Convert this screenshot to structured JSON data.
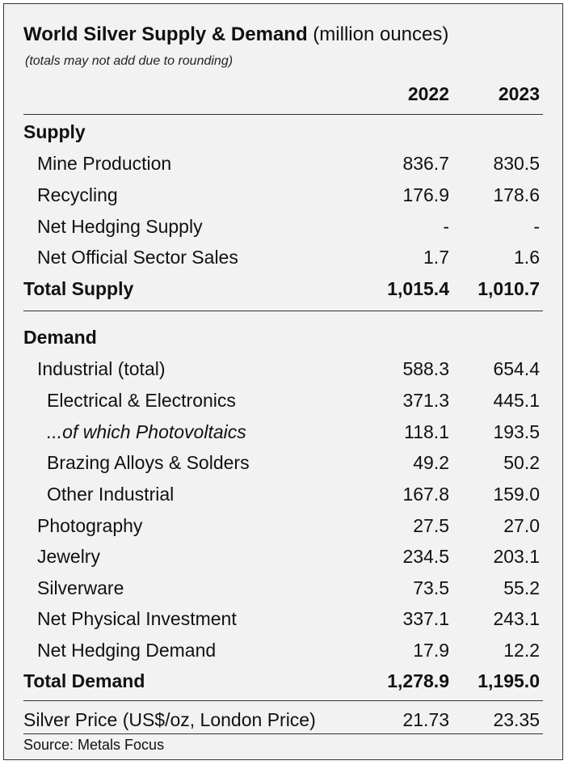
{
  "title": {
    "bold": "World Silver Supply & Demand",
    "normal": " (million ounces)",
    "note": "(totals may not add due to rounding)"
  },
  "columns": [
    "2022",
    "2023"
  ],
  "supply": {
    "header": "Supply",
    "rows": [
      {
        "label": "Mine Production",
        "y2022": "836.7",
        "y2023": "830.5"
      },
      {
        "label": "Recycling",
        "y2022": "176.9",
        "y2023": "178.6"
      },
      {
        "label": "Net Hedging Supply",
        "y2022": "-",
        "y2023": "-"
      },
      {
        "label": "Net Official Sector Sales",
        "y2022": "1.7",
        "y2023": "1.6"
      }
    ],
    "total": {
      "label": "Total Supply",
      "y2022": "1,015.4",
      "y2023": "1,010.7"
    }
  },
  "demand": {
    "header": "Demand",
    "rows": [
      {
        "label": "Industrial (total)",
        "y2022": "588.3",
        "y2023": "654.4"
      },
      {
        "label": "Electrical & Electronics",
        "y2022": "371.3",
        "y2023": "445.1"
      },
      {
        "label": "...of which Photovoltaics",
        "y2022": "118.1",
        "y2023": "193.5"
      },
      {
        "label": "Brazing Alloys & Solders",
        "y2022": "49.2",
        "y2023": "50.2"
      },
      {
        "label": "Other Industrial",
        "y2022": "167.8",
        "y2023": "159.0"
      },
      {
        "label": "Photography",
        "y2022": "27.5",
        "y2023": "27.0"
      },
      {
        "label": "Jewelry",
        "y2022": "234.5",
        "y2023": "203.1"
      },
      {
        "label": "Silverware",
        "y2022": "73.5",
        "y2023": "55.2"
      },
      {
        "label": "Net Physical Investment",
        "y2022": "337.1",
        "y2023": "243.1"
      },
      {
        "label": "Net Hedging Demand",
        "y2022": "17.9",
        "y2023": "12.2"
      }
    ],
    "total": {
      "label": "Total Demand",
      "y2022": "1,278.9",
      "y2023": "1,195.0"
    }
  },
  "price": {
    "label": "Silver Price (US$/oz, London Price)",
    "y2022": "21.73",
    "y2023": "23.35"
  },
  "source": "Source: Metals Focus"
}
